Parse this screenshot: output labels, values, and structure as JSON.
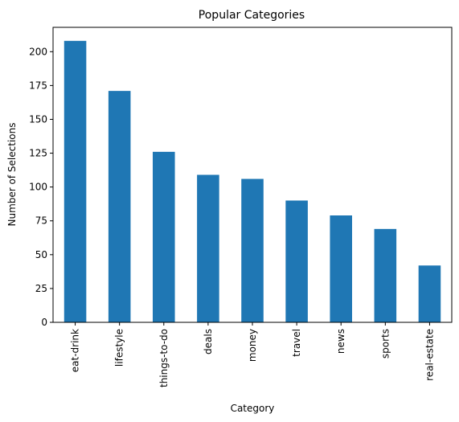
{
  "chart_data": {
    "type": "bar",
    "title": "Popular Categories",
    "xlabel": "Category",
    "ylabel": "Number of Selections",
    "categories": [
      "eat-drink",
      "lifestyle",
      "things-to-do",
      "deals",
      "money",
      "travel",
      "news",
      "sports",
      "real-estate"
    ],
    "values": [
      208,
      171,
      126,
      109,
      106,
      90,
      79,
      69,
      42
    ],
    "ylim": [
      0,
      218
    ],
    "yticks": [
      0,
      25,
      50,
      75,
      100,
      125,
      150,
      175,
      200
    ],
    "ytick_labels": [
      "0",
      "25",
      "50",
      "75",
      "100",
      "125",
      "150",
      "175",
      "200"
    ],
    "bar_color": "#1f77b4",
    "grid": false,
    "legend": "none"
  }
}
